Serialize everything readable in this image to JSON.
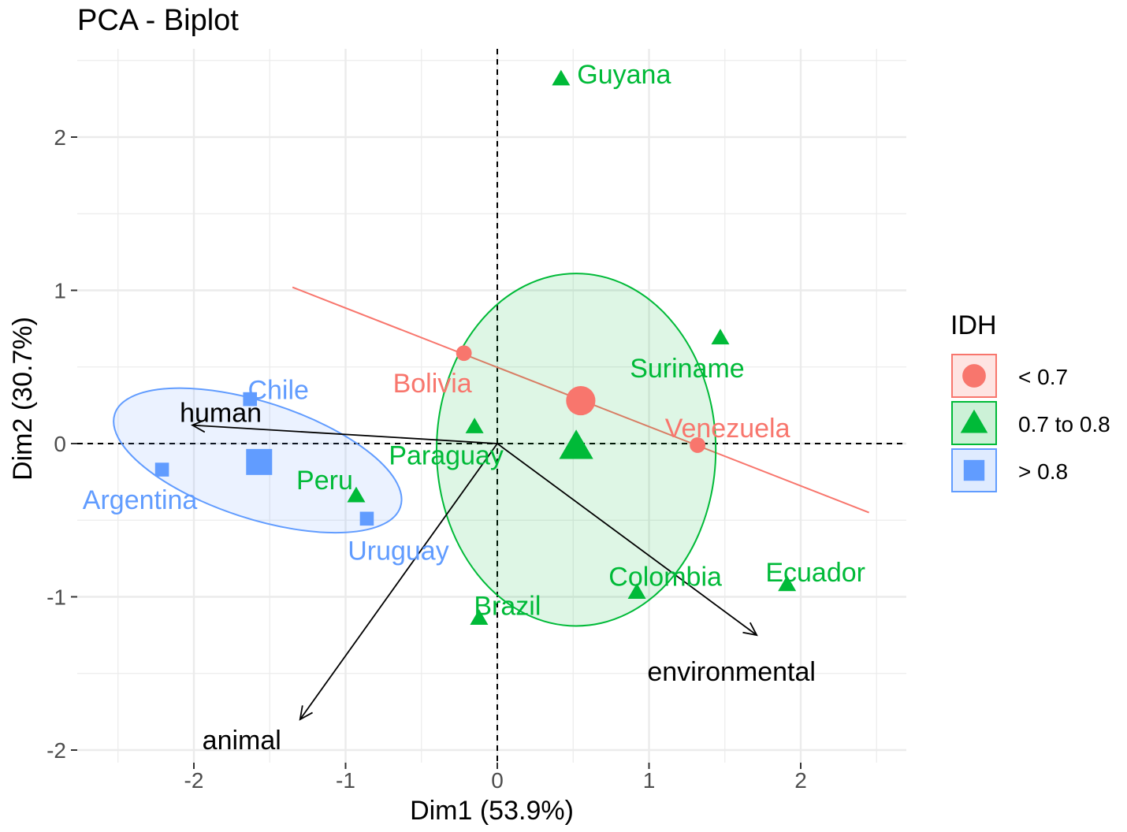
{
  "chart_data": {
    "type": "scatter",
    "title": "PCA - Biplot",
    "xlabel": "Dim1 (53.9%)",
    "ylabel": "Dim2 (30.7%)",
    "xlim": [
      -2.5,
      2.5
    ],
    "ylim": [
      -2,
      2.5
    ],
    "x_ticks": [
      -2,
      -1,
      0,
      1,
      2
    ],
    "y_ticks": [
      -2,
      -1,
      0,
      1,
      2
    ],
    "x_tick_labels": [
      "-2",
      "-1",
      "0",
      "1",
      "2"
    ],
    "y_tick_labels": [
      "-2",
      "-1",
      "0",
      "1",
      "2"
    ],
    "grid": true,
    "reference_lines": {
      "x": 0,
      "y": 0,
      "style": "dashed"
    },
    "legend": {
      "title": "IDH",
      "placement": "right",
      "entries": [
        {
          "label": "< 0.7",
          "color": "#F8766D",
          "shape": "circle"
        },
        {
          "label": "0.7 to 0.8",
          "color": "#00BA38",
          "shape": "triangle"
        },
        {
          "label": "> 0.8",
          "color": "#619CFF",
          "shape": "square"
        }
      ]
    },
    "series": [
      {
        "name": "< 0.7",
        "color": "#F8766D",
        "shape": "circle",
        "points": [
          {
            "label": "Bolivia",
            "x": -0.22,
            "y": 0.59
          },
          {
            "label": "Venezuela",
            "x": 1.32,
            "y": -0.01
          }
        ],
        "centroid": {
          "x": 0.55,
          "y": 0.28
        },
        "ellipse": {
          "type": "line",
          "from": [
            -1.35,
            1.02
          ],
          "to": [
            2.45,
            -0.45
          ]
        }
      },
      {
        "name": "0.7 to 0.8",
        "color": "#00BA38",
        "shape": "triangle",
        "points": [
          {
            "label": "Guyana",
            "x": 0.42,
            "y": 2.38
          },
          {
            "label": "Suriname",
            "x": 1.47,
            "y": 0.69
          },
          {
            "label": "Paraguay",
            "x": -0.15,
            "y": 0.11
          },
          {
            "label": "Peru",
            "x": -0.93,
            "y": -0.34
          },
          {
            "label": "Colombia",
            "x": 0.92,
            "y": -0.97
          },
          {
            "label": "Ecuador",
            "x": 1.91,
            "y": -0.92
          },
          {
            "label": "Brazil",
            "x": -0.12,
            "y": -1.14
          }
        ],
        "centroid": {
          "x": 0.52,
          "y": -0.02
        },
        "ellipse": {
          "cx": 0.52,
          "cy": -0.04,
          "rx": 0.92,
          "ry": 1.15
        }
      },
      {
        "name": "> 0.8",
        "color": "#619CFF",
        "shape": "square",
        "points": [
          {
            "label": "Chile",
            "x": -1.63,
            "y": 0.29
          },
          {
            "label": "Argentina",
            "x": -2.21,
            "y": -0.17
          },
          {
            "label": "Uruguay",
            "x": -0.86,
            "y": -0.49
          }
        ],
        "centroid": {
          "x": -1.57,
          "y": -0.12
        },
        "ellipse": {
          "cx": -1.58,
          "cy": -0.11,
          "rx": 0.99,
          "ry": 0.38,
          "angle_deg": 18
        }
      }
    ],
    "variables": [
      {
        "label": "human",
        "x": -2.01,
        "y": 0.12
      },
      {
        "label": "animal",
        "x": -1.3,
        "y": -1.8
      },
      {
        "label": "environmental",
        "x": 1.71,
        "y": -1.25
      }
    ]
  }
}
